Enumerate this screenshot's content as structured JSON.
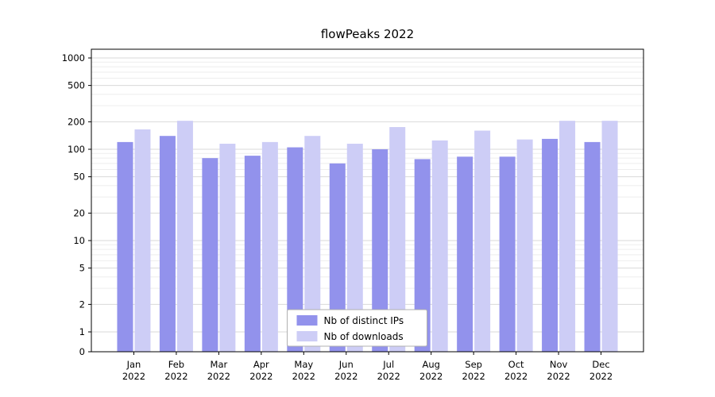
{
  "chart_data": {
    "type": "bar",
    "title": "flowPeaks 2022",
    "x_year": "2022",
    "categories": [
      "Jan",
      "Feb",
      "Mar",
      "Apr",
      "May",
      "Jun",
      "Jul",
      "Aug",
      "Sep",
      "Oct",
      "Nov",
      "Dec"
    ],
    "series": [
      {
        "name": "Nb of distinct IPs",
        "color": "#9292ec",
        "values": [
          120,
          140,
          80,
          85,
          105,
          70,
          100,
          78,
          83,
          83,
          130,
          120
        ]
      },
      {
        "name": "Nb of downloads",
        "color": "#cdcdf6",
        "values": [
          165,
          205,
          115,
          120,
          140,
          115,
          175,
          125,
          160,
          128,
          205,
          205
        ]
      }
    ],
    "yscale": "symlog",
    "y_ticks": [
      0,
      1,
      2,
      5,
      10,
      20,
      50,
      100,
      200,
      500,
      1000
    ],
    "ylim": [
      0,
      1250
    ],
    "grid": true,
    "legend_position": "lower center"
  }
}
